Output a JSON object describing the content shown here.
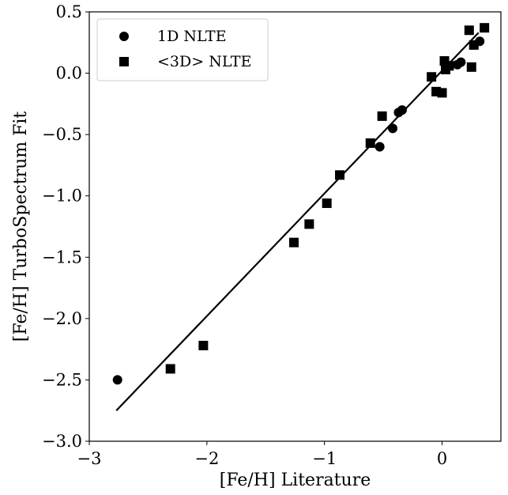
{
  "chart_data": {
    "type": "scatter",
    "xlabel": "[Fe/H] Literature",
    "ylabel": "[Fe/H] TurboSpectrum Fit",
    "xlim": [
      -3.0,
      0.5
    ],
    "ylim": [
      -3.0,
      0.5
    ],
    "x_ticks": [
      {
        "value": -3,
        "label": "−3"
      },
      {
        "value": -2,
        "label": "−2"
      },
      {
        "value": -1,
        "label": "−1"
      },
      {
        "value": 0,
        "label": "0"
      }
    ],
    "y_ticks": [
      {
        "value": -3.0,
        "label": "−3.0"
      },
      {
        "value": -2.5,
        "label": "−2.5"
      },
      {
        "value": -2.0,
        "label": "−2.0"
      },
      {
        "value": -1.5,
        "label": "−1.5"
      },
      {
        "value": -1.0,
        "label": "−1.0"
      },
      {
        "value": -0.5,
        "label": "−0.5"
      },
      {
        "value": 0.0,
        "label": "0.0"
      },
      {
        "value": 0.5,
        "label": "0.5"
      }
    ],
    "grid": false,
    "legend_position": "top-left",
    "series": [
      {
        "name": "1D NLTE",
        "marker": "circle",
        "color": "#000000",
        "points": [
          [
            -2.76,
            -2.5
          ],
          [
            -0.53,
            -0.6
          ],
          [
            -0.42,
            -0.45
          ],
          [
            -0.37,
            -0.32
          ],
          [
            -0.34,
            -0.3
          ],
          [
            0.13,
            0.07
          ],
          [
            0.16,
            0.09
          ],
          [
            0.32,
            0.26
          ]
        ]
      },
      {
        "name": "<3D> NLTE",
        "marker": "square",
        "color": "#000000",
        "points": [
          [
            -2.31,
            -2.41
          ],
          [
            -2.03,
            -2.22
          ],
          [
            -1.26,
            -1.38
          ],
          [
            -1.13,
            -1.23
          ],
          [
            -0.98,
            -1.06
          ],
          [
            -0.87,
            -0.83
          ],
          [
            -0.61,
            -0.57
          ],
          [
            -0.51,
            -0.35
          ],
          [
            -0.09,
            -0.03
          ],
          [
            -0.05,
            -0.15
          ],
          [
            0.0,
            -0.16
          ],
          [
            0.02,
            0.1
          ],
          [
            0.03,
            0.03
          ],
          [
            0.06,
            0.06
          ],
          [
            0.23,
            0.35
          ],
          [
            0.25,
            0.05
          ],
          [
            0.27,
            0.23
          ],
          [
            0.36,
            0.37
          ]
        ]
      }
    ],
    "fit_line": {
      "points": [
        [
          -2.77,
          -2.75
        ],
        [
          0.31,
          0.33
        ]
      ],
      "color": "#000000"
    }
  }
}
